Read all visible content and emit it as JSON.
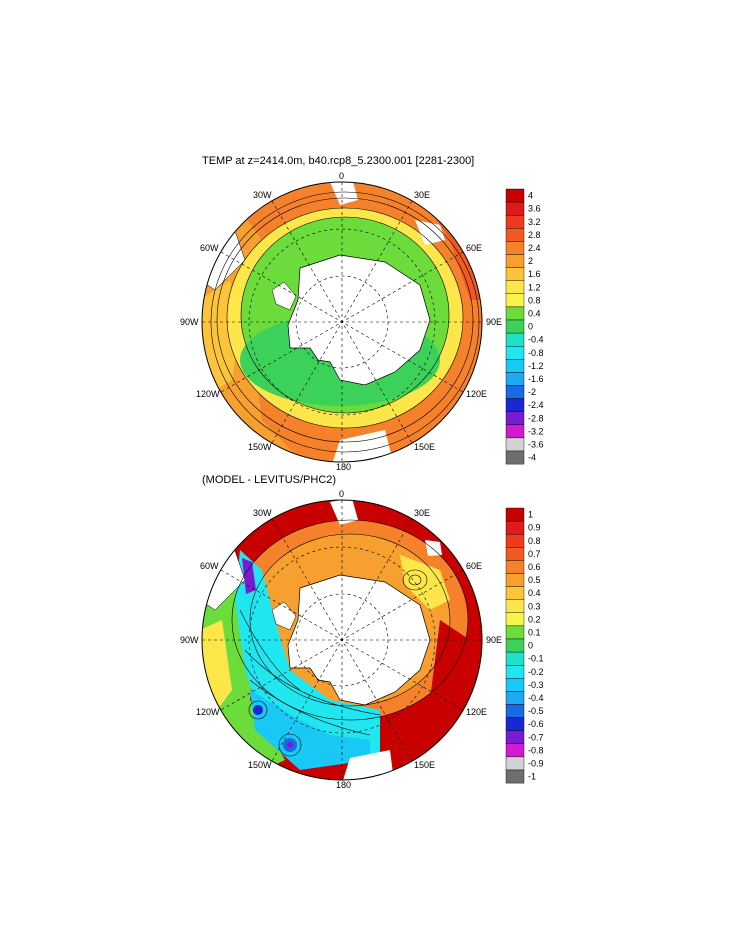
{
  "panels": [
    {
      "title": "TEMP at z=2414.0m, b40.rcp8_5.2300.001 [2281-2300]",
      "lon_labels": [
        "0",
        "30E",
        "60E",
        "90E",
        "120E",
        "150E",
        "180",
        "150W",
        "120W",
        "90W",
        "60W",
        "30W"
      ],
      "colorbar": {
        "labels": [
          "4",
          "3.6",
          "3.2",
          "2.8",
          "2.4",
          "2",
          "1.6",
          "1.2",
          "0.8",
          "0.4",
          "0",
          "-0.4",
          "-0.8",
          "-1.2",
          "-1.6",
          "-2",
          "-2.4",
          "-2.8",
          "-3.2",
          "-3.6",
          "-4"
        ],
        "colors": [
          "#c80000",
          "#e01a1a",
          "#f03a1e",
          "#f05a22",
          "#f5822a",
          "#f7a030",
          "#fbc43a",
          "#fde64a",
          "#f6f54a",
          "#6bdc3c",
          "#3cd25a",
          "#20e0c8",
          "#20e6f0",
          "#18c8f5",
          "#20a8f0",
          "#1a6ae6",
          "#1a28d2",
          "#7a1ad2",
          "#d21ad2",
          "#d2d2d2",
          "#6e6e6e"
        ]
      }
    },
    {
      "title": "(MODEL - LEVITUS/PHC2)",
      "lon_labels": [
        "0",
        "30E",
        "60E",
        "90E",
        "120E",
        "150E",
        "180",
        "150W",
        "120W",
        "90W",
        "60W",
        "30W"
      ],
      "colorbar": {
        "labels": [
          "1",
          "0.9",
          "0.8",
          "0.7",
          "0.6",
          "0.5",
          "0.4",
          "0.3",
          "0.2",
          "0.1",
          "0",
          "-0.1",
          "-0.2",
          "-0.3",
          "-0.4",
          "-0.5",
          "-0.6",
          "-0.7",
          "-0.8",
          "-0.9",
          "-1"
        ],
        "colors": [
          "#c80000",
          "#e01a1a",
          "#f03a1e",
          "#f05a22",
          "#f5822a",
          "#f7a030",
          "#fbc43a",
          "#fde64a",
          "#f6f54a",
          "#6bdc3c",
          "#3cd25a",
          "#20e0c8",
          "#20e6f0",
          "#18c8f5",
          "#20a8f0",
          "#1a6ae6",
          "#1a28d2",
          "#7a1ad2",
          "#d21ad2",
          "#d2d2d2",
          "#6e6e6e"
        ]
      }
    }
  ]
}
